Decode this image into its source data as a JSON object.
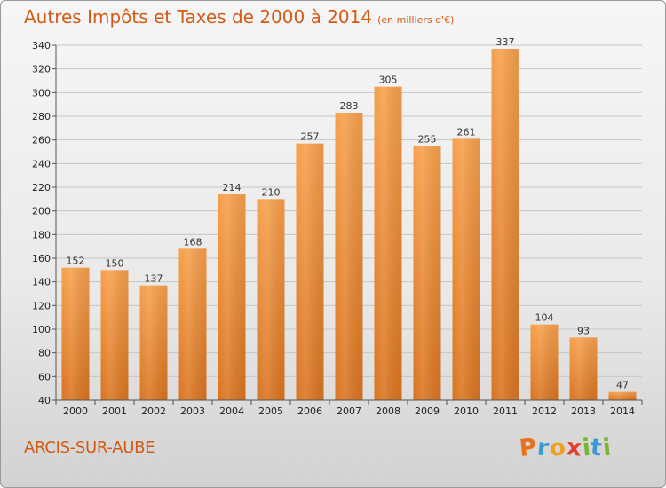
{
  "header": {
    "title": "Autres Impôts et Taxes de 2000 à 2014",
    "unit": "(en milliers d'€)"
  },
  "footer": {
    "commune": "ARCIS-SUR-AUBE",
    "logo": [
      "P",
      "r",
      "o",
      "x",
      "i",
      "t",
      "i"
    ],
    "logo_colors": [
      "#e8711d",
      "#3a9ad9",
      "#f0a020",
      "#e43f2c",
      "#7ab532",
      "#3a9ad9",
      "#7ab532"
    ]
  },
  "colors": {
    "bar_light": "#f6a04c",
    "bar_dark": "#d97420",
    "accent": "#d35a16"
  },
  "chart_data": {
    "type": "bar",
    "title": "Autres Impôts et Taxes de 2000 à 2014",
    "subtitle": "(en milliers d'€)",
    "categories": [
      "2000",
      "2001",
      "2002",
      "2003",
      "2004",
      "2005",
      "2006",
      "2007",
      "2008",
      "2009",
      "2010",
      "2011",
      "2012",
      "2013",
      "2014"
    ],
    "values": [
      152,
      150,
      137,
      168,
      214,
      210,
      257,
      283,
      305,
      255,
      261,
      337,
      104,
      93,
      47
    ],
    "ylim": [
      40,
      340
    ],
    "yticks": [
      40,
      60,
      80,
      100,
      120,
      140,
      160,
      180,
      200,
      220,
      240,
      260,
      280,
      300,
      320,
      340
    ],
    "grid": true,
    "xlabel": "",
    "ylabel": ""
  }
}
